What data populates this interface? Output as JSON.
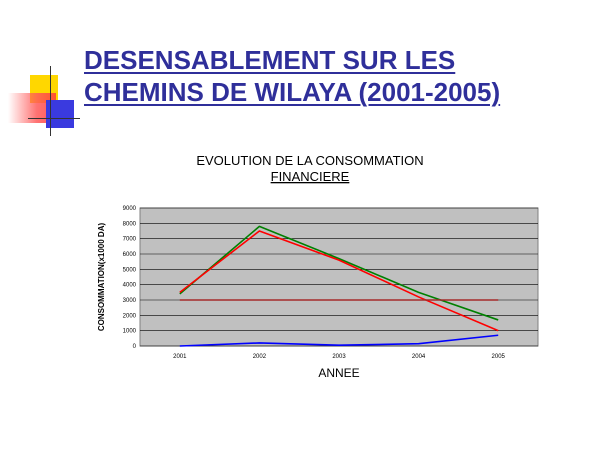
{
  "slide": {
    "title_line1": "DESENSABLEMENT SUR LES",
    "title_line2": "CHEMINS DE WILAYA (2001-2005)"
  },
  "chart_data": {
    "type": "line",
    "title_line1": "EVOLUTION DE LA CONSOMMATION",
    "title_line2": "FINANCIERE",
    "xlabel": "ANNEE",
    "ylabel": "CONSOMMATION(x1000 DA)",
    "categories": [
      "2001",
      "2002",
      "2003",
      "2004",
      "2005"
    ],
    "ylim": [
      0,
      9000
    ],
    "yticks": [
      0,
      1000,
      2000,
      3000,
      4000,
      5000,
      6000,
      7000,
      8000,
      9000
    ],
    "grid": true,
    "background": "#c0c0c0",
    "series": [
      {
        "color": "#008000",
        "values": [
          3400,
          7800,
          5700,
          3500,
          1700
        ]
      },
      {
        "color": "#ff0000",
        "values": [
          3500,
          7500,
          5600,
          3200,
          1000
        ]
      },
      {
        "color": "#a52a2a",
        "values": [
          3000,
          3000,
          3000,
          3000,
          3000
        ]
      },
      {
        "color": "#0000ff",
        "values": [
          0,
          200,
          50,
          150,
          700
        ]
      }
    ]
  }
}
